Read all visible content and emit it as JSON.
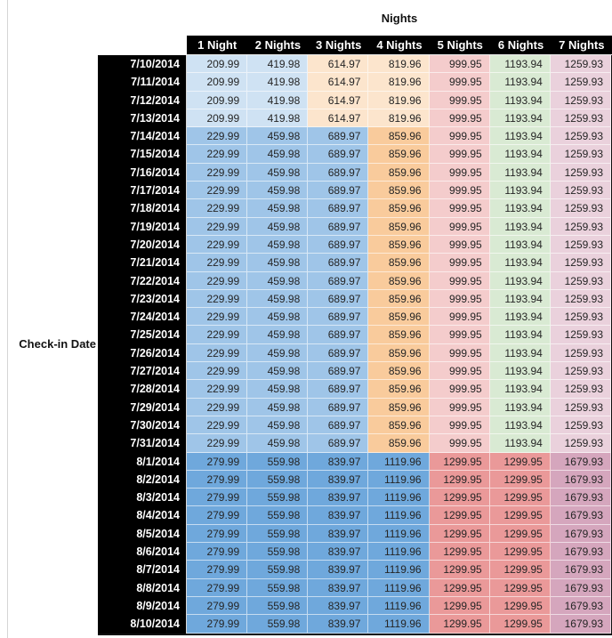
{
  "chart_data": {
    "type": "table",
    "title": "Nights",
    "row_axis_label": "Check-in Date",
    "columns": [
      "1 Night",
      "2 Nights",
      "3 Nights",
      "4 Nights",
      "5 Nights",
      "6 Nights",
      "7 Nights"
    ],
    "header_colors": {
      "background": "#000000",
      "text": "#ffffff"
    },
    "date_column_colors": {
      "background": "#000000",
      "text": "#ffffff"
    },
    "tiers": [
      {
        "values": [
          209.99,
          419.98,
          614.97,
          819.96,
          999.95,
          1193.94,
          1259.93
        ],
        "colors": [
          "#cfe2f3",
          "#cfe2f3",
          "#fce5cd",
          "#fce5cd",
          "#f4cccc",
          "#d9ead3",
          "#ead1dc"
        ]
      },
      {
        "values": [
          229.99,
          459.98,
          689.97,
          859.96,
          999.95,
          1193.94,
          1259.93
        ],
        "colors": [
          "#9fc5e8",
          "#9fc5e8",
          "#9fc5e8",
          "#f9cb9c",
          "#f4cccc",
          "#d9ead3",
          "#ead1dc"
        ]
      },
      {
        "values": [
          279.99,
          559.98,
          839.97,
          1119.96,
          1299.95,
          1299.95,
          1679.93
        ],
        "colors": [
          "#6fa8dc",
          "#6fa8dc",
          "#6fa8dc",
          "#6fa8dc",
          "#ea9999",
          "#ea9999",
          "#d5a6bd"
        ]
      }
    ],
    "rows": [
      {
        "date": "7/10/2014",
        "tier": 0
      },
      {
        "date": "7/11/2014",
        "tier": 0
      },
      {
        "date": "7/12/2014",
        "tier": 0
      },
      {
        "date": "7/13/2014",
        "tier": 0
      },
      {
        "date": "7/14/2014",
        "tier": 1
      },
      {
        "date": "7/15/2014",
        "tier": 1
      },
      {
        "date": "7/16/2014",
        "tier": 1
      },
      {
        "date": "7/17/2014",
        "tier": 1
      },
      {
        "date": "7/18/2014",
        "tier": 1
      },
      {
        "date": "7/19/2014",
        "tier": 1
      },
      {
        "date": "7/20/2014",
        "tier": 1
      },
      {
        "date": "7/21/2014",
        "tier": 1
      },
      {
        "date": "7/22/2014",
        "tier": 1
      },
      {
        "date": "7/23/2014",
        "tier": 1
      },
      {
        "date": "7/24/2014",
        "tier": 1
      },
      {
        "date": "7/25/2014",
        "tier": 1
      },
      {
        "date": "7/26/2014",
        "tier": 1
      },
      {
        "date": "7/27/2014",
        "tier": 1
      },
      {
        "date": "7/28/2014",
        "tier": 1
      },
      {
        "date": "7/29/2014",
        "tier": 1
      },
      {
        "date": "7/30/2014",
        "tier": 1
      },
      {
        "date": "7/31/2014",
        "tier": 1
      },
      {
        "date": "8/1/2014",
        "tier": 2
      },
      {
        "date": "8/2/2014",
        "tier": 2
      },
      {
        "date": "8/3/2014",
        "tier": 2
      },
      {
        "date": "8/4/2014",
        "tier": 2
      },
      {
        "date": "8/5/2014",
        "tier": 2
      },
      {
        "date": "8/6/2014",
        "tier": 2
      },
      {
        "date": "8/7/2014",
        "tier": 2
      },
      {
        "date": "8/8/2014",
        "tier": 2
      },
      {
        "date": "8/9/2014",
        "tier": 2
      },
      {
        "date": "8/10/2014",
        "tier": 2
      }
    ]
  }
}
